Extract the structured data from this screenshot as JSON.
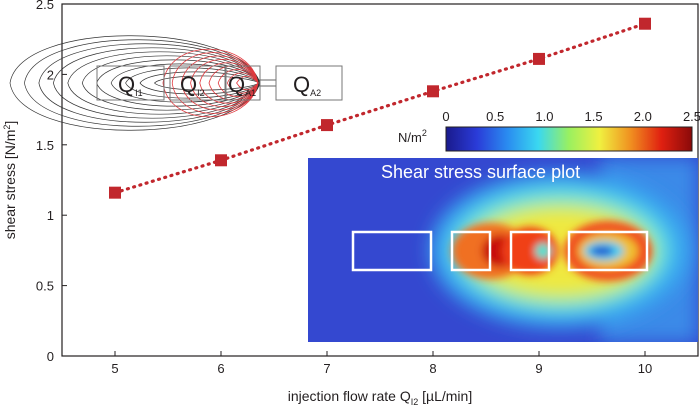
{
  "chart_data": {
    "type": "scatter",
    "xlabel_prefix": "injection flow rate Q",
    "xlabel_sub": "I2",
    "xlabel_suffix": " [µL/min]",
    "ylabel": "shear stress [N/m",
    "ylabel_sup": "2",
    "ylabel_end": "]",
    "xlim": [
      4.5,
      10.5
    ],
    "ylim": [
      0,
      2.5
    ],
    "x_ticks": [
      "5",
      "6",
      "7",
      "8",
      "9",
      "10"
    ],
    "y_ticks": [
      "0",
      "0.5",
      "1",
      "1.5",
      "2",
      "2.5"
    ],
    "x_tick_values": [
      5,
      6,
      7,
      8,
      9,
      10
    ],
    "y_tick_values": [
      0,
      0.5,
      1,
      1.5,
      2,
      2.5
    ],
    "series": [
      {
        "name": "shear stress",
        "color": "#c1272d",
        "marker": "square",
        "line_style": "dotted",
        "x": [
          5,
          6,
          7,
          8,
          9,
          10
        ],
        "y": [
          1.16,
          1.39,
          1.64,
          1.88,
          2.11,
          2.36
        ]
      }
    ]
  },
  "inset_diagram": {
    "labels": [
      {
        "main": "Q",
        "sub": "I1"
      },
      {
        "main": "Q",
        "sub": "I2"
      },
      {
        "main": "Q",
        "sub": "A1"
      },
      {
        "main": "Q",
        "sub": "A2"
      }
    ],
    "outer_line_color": "#333333",
    "inner_line_color": "#e0393e"
  },
  "colorbar": {
    "unit": "N/m",
    "unit_sup": "2",
    "ticks": [
      "0",
      "0.5",
      "1.0",
      "1.5",
      "2.0",
      "2.5"
    ],
    "tick_values": [
      0,
      0.5,
      1.0,
      1.5,
      2.0,
      2.5
    ],
    "range": [
      0,
      2.5
    ],
    "colors": [
      "#1a1a8c",
      "#2a3bd8",
      "#2a8cf0",
      "#3ad8f0",
      "#9af060",
      "#f0f040",
      "#f09020",
      "#e02010",
      "#8a0a0a"
    ]
  },
  "heatmap": {
    "title": "Shear stress surface plot",
    "background": "#3a55d8"
  }
}
